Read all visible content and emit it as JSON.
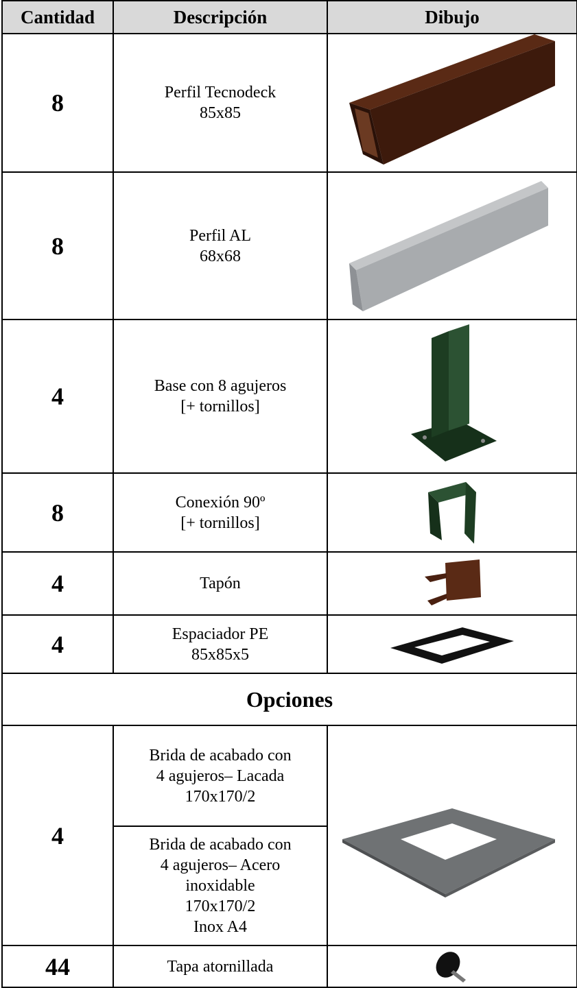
{
  "table": {
    "headers": [
      "Cantidad",
      "Descripción",
      "Dibujo"
    ],
    "rows": [
      {
        "quantity": 8,
        "description": [
          "Perfil Tecnodeck",
          "85x85"
        ]
      },
      {
        "quantity": 8,
        "description": [
          "Perfil AL",
          "68x68"
        ]
      },
      {
        "quantity": 4,
        "description": [
          "Base con 8 agujeros",
          "[+ tornillos]"
        ]
      },
      {
        "quantity": 8,
        "description": [
          "Conexión 90º",
          "[+ tornillos]"
        ]
      },
      {
        "quantity": 4,
        "description": [
          "Tapón"
        ]
      },
      {
        "quantity": 4,
        "description": [
          "Espaciador PE",
          "85x85x5"
        ]
      }
    ],
    "section": "Opciones",
    "options": [
      {
        "quantity": 4,
        "variants": [
          [
            "Brida de acabado con",
            "4 agujeros– Lacada",
            "170x170/2"
          ],
          [
            "Brida de acabado con",
            "4 agujeros– Acero",
            "inoxidable",
            "170x170/2",
            "Inox A4"
          ]
        ]
      },
      {
        "quantity": 44,
        "description": [
          "Tapa atornillada"
        ]
      }
    ]
  }
}
